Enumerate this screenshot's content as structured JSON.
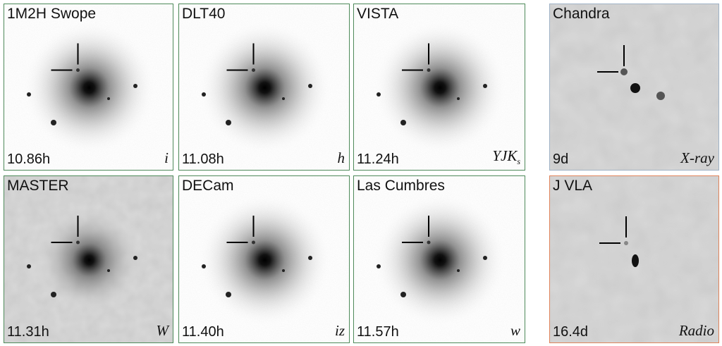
{
  "panels": [
    {
      "label": "1M2H Swope",
      "time": "10.86h",
      "band": "i",
      "kind": "optical"
    },
    {
      "label": "DLT40",
      "time": "11.08h",
      "band": "h",
      "kind": "optical"
    },
    {
      "label": "VISTA",
      "time": "11.24h",
      "band": "YJK",
      "band_sub": "s",
      "kind": "optical"
    },
    {
      "label": "Chandra",
      "time": "9d",
      "band": "X-ray",
      "kind": "xray"
    },
    {
      "label": "MASTER",
      "time": "11.31h",
      "band": "W",
      "kind": "pixel"
    },
    {
      "label": "DECam",
      "time": "11.40h",
      "band": "iz",
      "kind": "optical"
    },
    {
      "label": "Las Cumbres",
      "time": "11.57h",
      "band": "w",
      "kind": "optical"
    },
    {
      "label": "J VLA",
      "time": "16.4d",
      "band": "Radio",
      "kind": "radio"
    }
  ]
}
